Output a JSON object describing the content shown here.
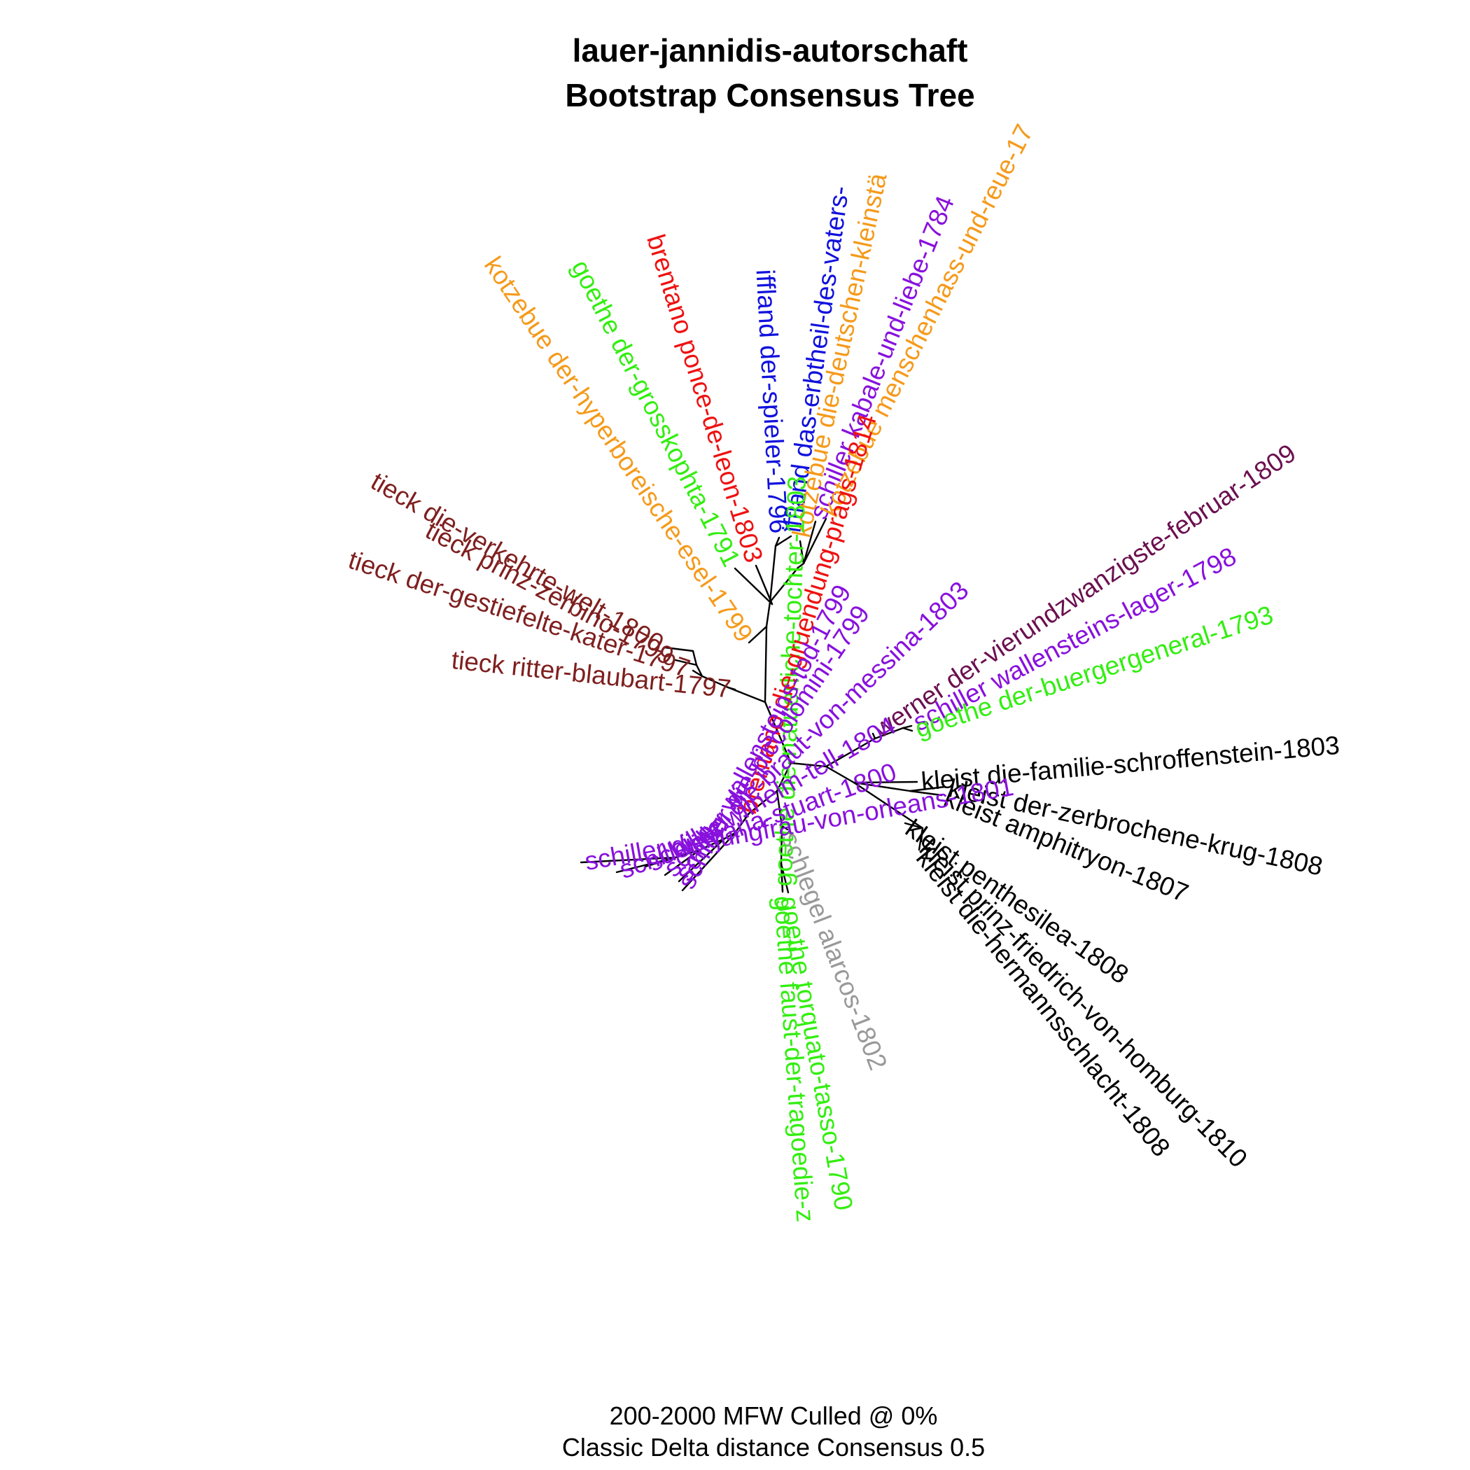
{
  "title": {
    "line1": "lauer-jannidis-autorschaft",
    "line2": "Bootstrap Consensus Tree"
  },
  "caption": {
    "line1": "200-2000 MFW  Culled @ 0%",
    "line2": "Classic Delta distance Consensus 0.5"
  },
  "colors": {
    "tieck": "#7f1f1f",
    "kotzebue": "#f59a1b",
    "goethe": "#33ee11",
    "brentano": "#ee1111",
    "iffland": "#1111dd",
    "schiller": "#8811dd",
    "werner": "#6b1050",
    "kleist": "#000000",
    "schlegel": "#999999",
    "branch": "#000000"
  },
  "leaves": [
    {
      "label": "tieck ritter-blaubart-1797",
      "color": "tieck"
    },
    {
      "label": "tieck der-gestiefelte-kater-1797",
      "color": "tieck"
    },
    {
      "label": "tieck prinz-zerbino-1799",
      "color": "tieck"
    },
    {
      "label": "tieck die-verkehrte-welt-1800",
      "color": "tieck"
    },
    {
      "label": "kotzebue der-hyperboreische-esel-1799",
      "color": "kotzebue"
    },
    {
      "label": "goethe der-grosskophta-1791",
      "color": "goethe"
    },
    {
      "label": "brentano ponce-de-leon-1803",
      "color": "brentano"
    },
    {
      "label": "iffland der-spieler-1796",
      "color": "iffland"
    },
    {
      "label": "iffland das-erbtheil-des-vaters-",
      "color": "iffland"
    },
    {
      "label": "kotzebue die-deutschen-kleinstä",
      "color": "kotzebue"
    },
    {
      "label": "schiller kabale-und-liebe-1784",
      "color": "schiller"
    },
    {
      "label": "kotzebue menschenhass-und-reue-17",
      "color": "kotzebue"
    },
    {
      "label": "werner der-vierundzwanzigste-februar-1809",
      "color": "werner"
    },
    {
      "label": "schiller wallensteins-lager-1798",
      "color": "schiller"
    },
    {
      "label": "goethe der-buergergeneral-1793",
      "color": "goethe"
    },
    {
      "label": "kleist die-familie-schroffenstein-1803",
      "color": "kleist"
    },
    {
      "label": "kleist der-zerbrochene-krug-1808",
      "color": "kleist"
    },
    {
      "label": "kleist amphitryon-1807",
      "color": "kleist"
    },
    {
      "label": "kleist penthesilea-1808",
      "color": "kleist"
    },
    {
      "label": "kleist prinz-friedrich-von-homburg-1810",
      "color": "kleist"
    },
    {
      "label": "kleist die-hermannsschlacht-1808",
      "color": "kleist"
    },
    {
      "label": "schlegel alarcos-1802",
      "color": "schlegel"
    },
    {
      "label": "goethe torquato-tasso-1790",
      "color": "goethe"
    },
    {
      "label": "goethe faust-der-tragoedie-z",
      "color": "goethe"
    },
    {
      "label": "goethe die-natuerliche-tochter-1803",
      "color": "goethe"
    },
    {
      "label": "brentano die-gruendung-prags-1814",
      "color": "brentano"
    },
    {
      "label": "schiller wallensteins-tod-1799",
      "color": "schiller"
    },
    {
      "label": "schiller die-piccolomini-1799",
      "color": "schiller"
    },
    {
      "label": "schiller die-braut-von-messina-1803",
      "color": "schiller"
    },
    {
      "label": "schiller wilhelm-tell-1804",
      "color": "schiller"
    },
    {
      "label": "schiller maria-stuart-1800",
      "color": "schiller"
    },
    {
      "label": "schiller die-jungfrau-von-orleans-1801",
      "color": "schiller"
    }
  ]
}
